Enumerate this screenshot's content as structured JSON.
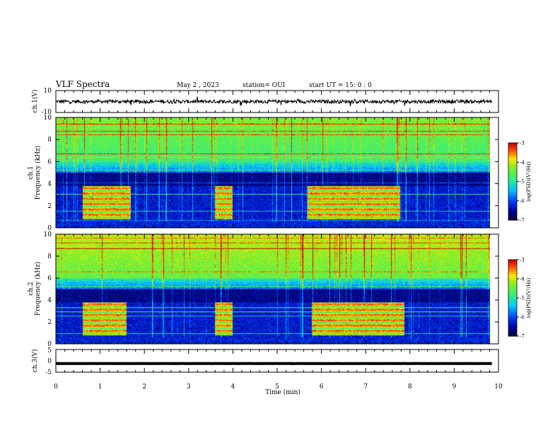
{
  "header": {
    "title": "VLF Spectra",
    "date": "May 2 , 2023",
    "station": "station= OUI",
    "start": "start  UT =   15: 0  : 0"
  },
  "chart_data": [
    {
      "type": "line",
      "name": "ch1-waveform",
      "ylabel": "ch.1(V)",
      "ylim": [
        -10,
        10
      ],
      "yticks": [
        "10",
        "-10"
      ],
      "baseline": 0
    },
    {
      "type": "heatmap",
      "name": "ch1-spectrogram",
      "ylabel_top": "ch.1",
      "ylabel": "Frequency (kHz)",
      "ylim": [
        0,
        10
      ],
      "yticks": [
        "0",
        "2",
        "4",
        "6",
        "8",
        "10"
      ],
      "colorbar": {
        "label": "log(PSD)(V²/Hz)",
        "min": -7,
        "max": -3,
        "ticks": [
          "-3",
          "-4",
          "-5",
          "-6",
          "-7"
        ]
      },
      "bursts": [
        {
          "t0": 0.6,
          "t1": 1.7
        },
        {
          "t0": 3.6,
          "t1": 4.0
        },
        {
          "t0": 5.7,
          "t1": 7.8
        }
      ]
    },
    {
      "type": "heatmap",
      "name": "ch2-spectrogram",
      "ylabel_top": "ch.2",
      "ylabel": "Frequency (kHz)",
      "ylim": [
        0,
        10
      ],
      "yticks": [
        "0",
        "2",
        "4",
        "6",
        "8",
        "10"
      ],
      "colorbar": {
        "label": "log(PSD)(V²/Hz)",
        "min": -7,
        "max": -3,
        "ticks": [
          "-3",
          "-4",
          "-5",
          "-6",
          "-7"
        ]
      },
      "bursts": [
        {
          "t0": 0.6,
          "t1": 1.6
        },
        {
          "t0": 3.6,
          "t1": 4.0
        },
        {
          "t0": 5.8,
          "t1": 7.9
        }
      ]
    },
    {
      "type": "line",
      "name": "ch3-waveform",
      "ylabel": "ch.3(V)",
      "ylim": [
        -5,
        5
      ],
      "yticks": [
        "5",
        "0",
        "-5"
      ],
      "baseline": -1.2
    }
  ],
  "xaxis": {
    "label": "Time (min)",
    "xlim": [
      0,
      10
    ],
    "ticks": [
      "0",
      "1",
      "2",
      "3",
      "4",
      "5",
      "6",
      "7",
      "8",
      "9",
      "10"
    ],
    "data_end": 9.85
  }
}
